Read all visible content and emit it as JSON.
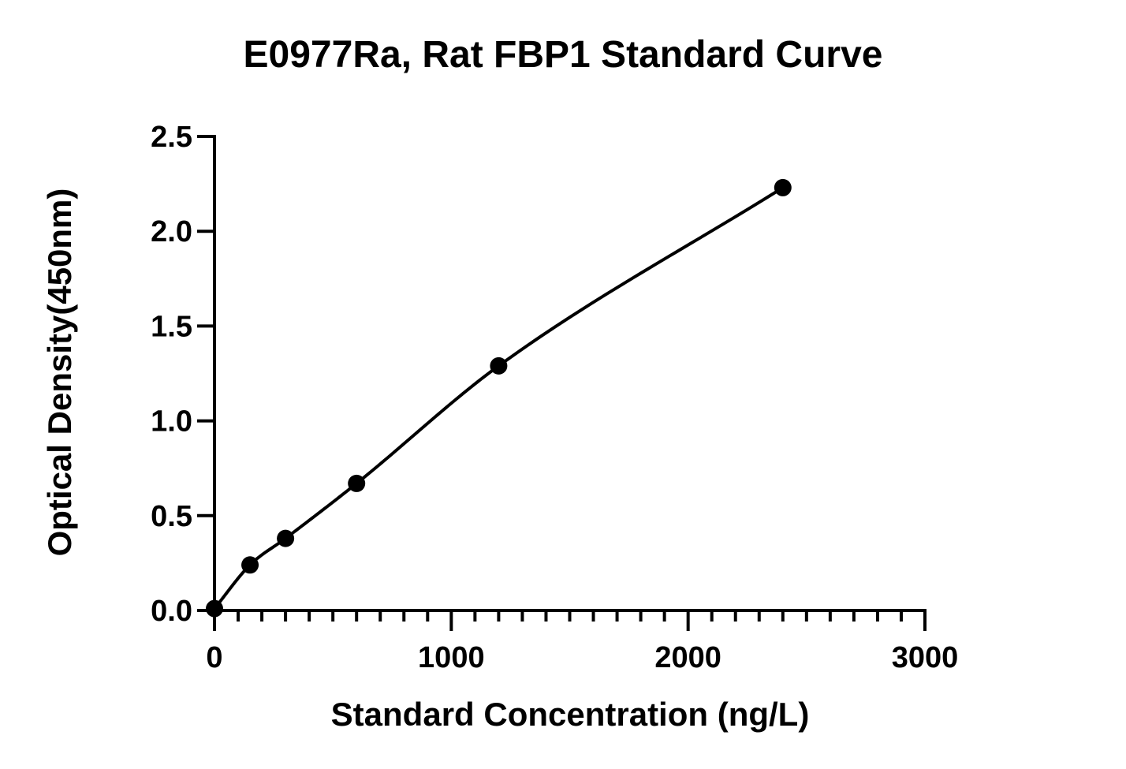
{
  "chart_data": {
    "type": "scatter",
    "title": "E0977Ra, Rat FBP1 Standard Curve",
    "xlabel": "Standard Concentration (ng/L)",
    "ylabel": "Optical Density(450nm)",
    "xlim": [
      0,
      3000
    ],
    "ylim": [
      0,
      2.5
    ],
    "x_ticks": [
      "0",
      "1000",
      "2000",
      "3000"
    ],
    "y_ticks": [
      "0.0",
      "0.5",
      "1.0",
      "1.5",
      "2.0",
      "2.5"
    ],
    "x_minor_step": 100,
    "grid": false,
    "legend": "none",
    "fit": "smooth curve through points",
    "series": [
      {
        "x": [
          0,
          150,
          300,
          600,
          1200,
          2400
        ],
        "y": [
          0.01,
          0.24,
          0.38,
          0.67,
          1.29,
          2.23
        ]
      }
    ],
    "colors": {
      "marker": "#000000",
      "line": "#000000",
      "axis": "#000000"
    }
  }
}
